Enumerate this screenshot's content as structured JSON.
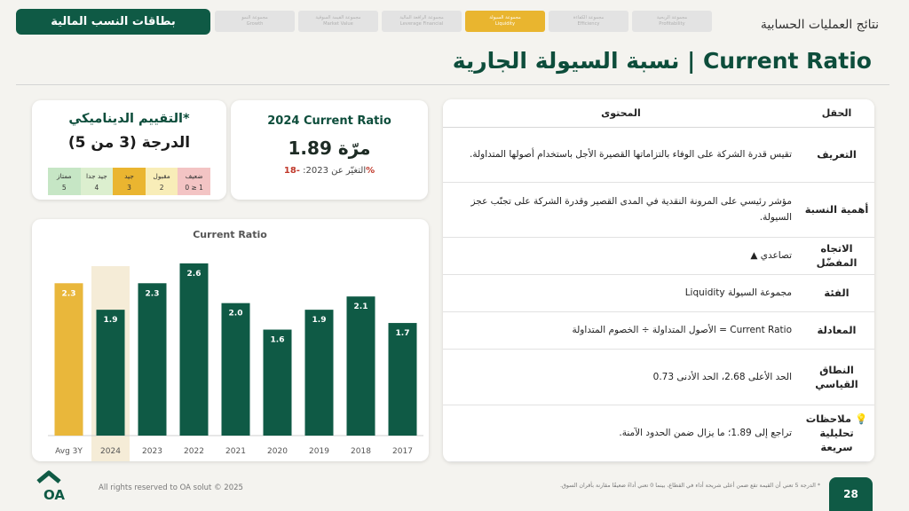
{
  "header": {
    "brand_button": "بطاقات النسب المالية",
    "section_title": "نتائج العمليات الحسابية",
    "tabs": [
      {
        "ar": "مجموعة النمو",
        "en": "Growth",
        "active": false
      },
      {
        "ar": "مجموعة القيمة السوقية",
        "en": "Market Value",
        "active": false
      },
      {
        "ar": "مجموعة الرافعة المالية",
        "en": "Leverage Financial",
        "active": false
      },
      {
        "ar": "مجموعة السيولة",
        "en": "Liquidity",
        "active": true
      },
      {
        "ar": "مجموعة الكفاءة",
        "en": "Efficiency",
        "active": false
      },
      {
        "ar": "مجموعة الربحية",
        "en": "Profitability",
        "active": false
      }
    ]
  },
  "page_title": "نسبة السيولة الجارية | Current Ratio",
  "rating": {
    "title": "التقييم الديناميكي*",
    "grade": "الدرجة (3 من 5)",
    "scale": [
      {
        "label": "ضعيف",
        "value": "0 ≥ 1",
        "color": "#f3c4c4"
      },
      {
        "label": "مقبول",
        "value": "2",
        "color": "#f8edb8"
      },
      {
        "label": "جيد",
        "value": "3",
        "color": "#eab530"
      },
      {
        "label": "جيد جدا",
        "value": "4",
        "color": "#dcefcf"
      },
      {
        "label": "ممتاز",
        "value": "5",
        "color": "#c6e6c5"
      }
    ]
  },
  "current": {
    "title": "2024 Current Ratio",
    "value": "1.89 مرّة",
    "change_label": "التغيّر عن 2023: ",
    "change_value": "-18%"
  },
  "chart_data": {
    "type": "bar",
    "title": "Current Ratio",
    "categories": [
      "Avg 3Y",
      "2024",
      "2023",
      "2022",
      "2021",
      "2020",
      "2019",
      "2018",
      "2017"
    ],
    "values": [
      2.3,
      1.9,
      2.3,
      2.6,
      2.0,
      1.6,
      1.9,
      2.1,
      1.7
    ],
    "ylim": [
      0,
      3.0
    ],
    "highlight": "2024",
    "colors": {
      "avg": "#e9b73b",
      "bar": "#0f5a45",
      "highlight_bg": "#f5ecd7"
    }
  },
  "table": {
    "header_field": "الحقل",
    "header_content": "المحتوى",
    "rows": [
      {
        "field": "التعريف",
        "content": "تقيس قدرة الشركة على الوفاء بالتزاماتها القصيرة الأجل باستخدام أصولها المتداولة."
      },
      {
        "field": "أهمية النسبة",
        "content": "مؤشر رئيسي على المرونة النقدية في المدى القصير وقدرة الشركة على تجنّب عجز السيولة."
      },
      {
        "field": "الاتجاه المفضّل",
        "content": "تصاعدي ▲"
      },
      {
        "field": "الفئة",
        "content": "مجموعة السيولة Liquidity"
      },
      {
        "field": "المعادلة",
        "content": "Current Ratio = الأصول المتداولة ÷ الخصوم المتداولة"
      },
      {
        "field": "النطاق القياسي",
        "content": "الحد الأعلى 2.68، الحد الأدنى 0.73"
      },
      {
        "field": "💡 ملاحظات تحليلية سريعة",
        "content": "تراجع إلى 1.89؛ ما يزال ضمن الحدود الآمنة."
      }
    ]
  },
  "footer": {
    "logo_text": "OA",
    "copyright": "All rights reserved to OA solut © 2025",
    "footnote": "* الدرجة 5 تعني أن القيمة تقع ضمن أعلى شريحة أداء في القطاع، بينما 0 تعني أداءً ضعيفًا مقارنة بأقران السوق.",
    "page_number": "28"
  }
}
